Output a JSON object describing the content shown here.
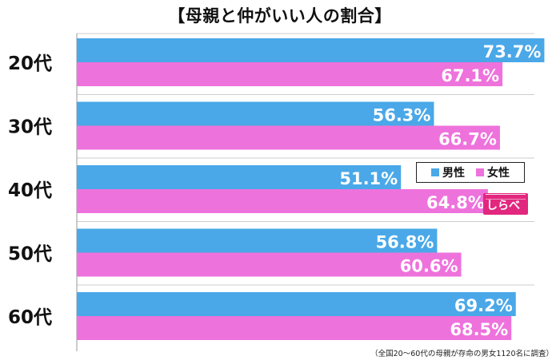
{
  "title": "【母親と仲がいい人の割合】",
  "footnote": "（全国20〜60代の母親が存命の男女1120名に調査）",
  "legend": {
    "male": "男性",
    "female": "女性"
  },
  "logo": {
    "text": "しらべぇ"
  },
  "colors": {
    "male": "#4aa8e8",
    "female": "#ee72dc",
    "grid": "#cccccc",
    "axis": "#999999"
  },
  "chart_data": {
    "type": "bar",
    "orientation": "horizontal",
    "categories": [
      "20代",
      "30代",
      "40代",
      "50代",
      "60代"
    ],
    "series": [
      {
        "name": "男性",
        "values": [
          73.7,
          56.3,
          51.1,
          56.8,
          69.2
        ],
        "labels": [
          "73.7%",
          "56.3%",
          "51.1%",
          "56.8%",
          "69.2%"
        ]
      },
      {
        "name": "女性",
        "values": [
          67.1,
          66.7,
          64.8,
          60.6,
          68.5
        ],
        "labels": [
          "67.1%",
          "66.7%",
          "64.8%",
          "60.6%",
          "68.5%"
        ]
      }
    ],
    "xlim": [
      0,
      80
    ],
    "grid": true,
    "legend_position": "right"
  }
}
